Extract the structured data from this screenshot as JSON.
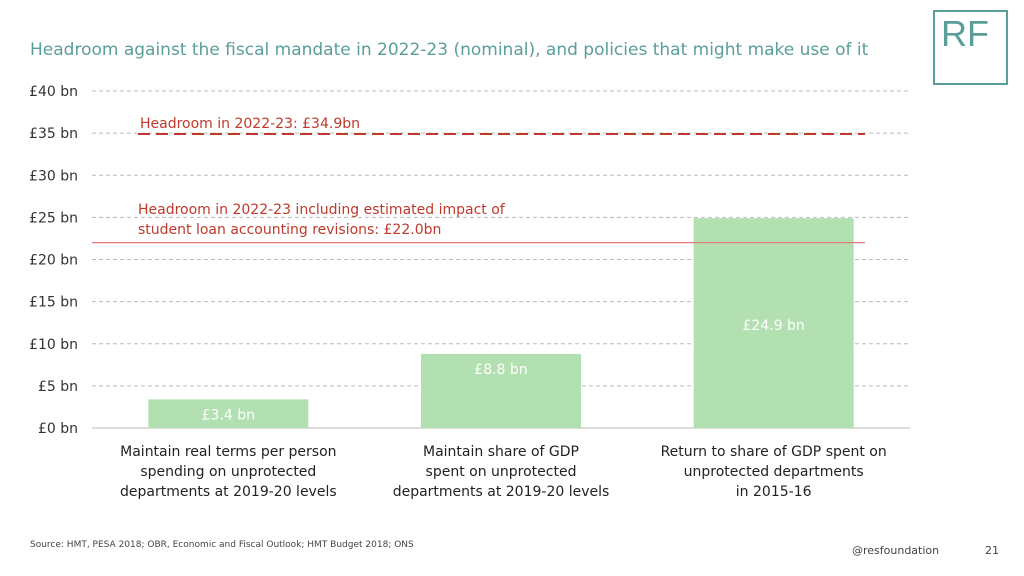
{
  "slide": {
    "title": "Headroom against the fiscal mandate in 2022-23 (nominal), and policies that might make use of it",
    "logo_text": "RF",
    "source": "Source: HMT, PESA 2018; OBR, Economic and Fiscal Outlook; HMT Budget 2018; ONS",
    "handle": "@resfoundation",
    "page_number": "21",
    "colors": {
      "title": "#5a9e9a",
      "bar": "#b2e0b0",
      "headroom_line": "#c0392b",
      "bar_label": "#ffffff",
      "grid": "#bbbbbb"
    }
  },
  "chart_data": {
    "type": "bar",
    "title": "Headroom against the fiscal mandate in 2022-23 (nominal), and policies that might make use of it",
    "categories": [
      [
        "Maintain real terms per person",
        "spending on unprotected",
        "departments at 2019-20 levels"
      ],
      [
        "Maintain share of GDP",
        "spent on unprotected",
        "departments at 2019-20 levels"
      ],
      [
        "Return to share of GDP spent on",
        "unprotected departments",
        "in 2015-16"
      ]
    ],
    "values": [
      3.4,
      8.8,
      24.9
    ],
    "data_labels": [
      "£3.4 bn",
      "£8.8 bn",
      "£24.9 bn"
    ],
    "ylim": [
      0,
      40
    ],
    "yticks": [
      0,
      5,
      10,
      15,
      20,
      25,
      30,
      35,
      40
    ],
    "ytick_labels": [
      "£0 bn",
      "£5 bn",
      "£10 bn",
      "£15 bn",
      "£20 bn",
      "£25 bn",
      "£30 bn",
      "£35 bn",
      "£40 bn"
    ],
    "grid": "horizontal dashed",
    "reference_lines": [
      {
        "value": 34.9,
        "style": "dashed",
        "label": [
          "Headroom in 2022-23: £34.9bn"
        ]
      },
      {
        "value": 22.0,
        "style": "solid",
        "label": [
          "Headroom in 2022-23 including estimated impact of",
          "student loan accounting revisions: £22.0bn"
        ]
      }
    ]
  }
}
